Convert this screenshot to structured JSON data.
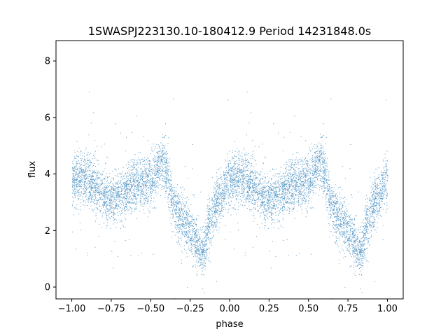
{
  "chart_data": {
    "type": "scatter",
    "title": "1SWASPJ223130.10-180412.9 Period 14231848.0s",
    "xlabel": "phase",
    "ylabel": "flux",
    "xlim": [
      -1.1,
      1.1
    ],
    "ylim": [
      -0.42,
      8.72
    ],
    "xticks": [
      -1.0,
      -0.75,
      -0.5,
      -0.25,
      0.0,
      0.25,
      0.5,
      0.75,
      1.0
    ],
    "xtick_labels": [
      "−1.00",
      "−0.75",
      "−0.50",
      "−0.25",
      "0.00",
      "0.25",
      "0.50",
      "0.75",
      "1.00"
    ],
    "yticks": [
      0,
      2,
      4,
      6,
      8
    ],
    "ytick_labels": [
      "0",
      "2",
      "4",
      "6",
      "8"
    ],
    "grid": false,
    "color": "#1f77b4",
    "marker_size": 1,
    "trend": {
      "phase": [
        0.0,
        0.05,
        0.1,
        0.15,
        0.2,
        0.25,
        0.3,
        0.35,
        0.4,
        0.45,
        0.5,
        0.55,
        0.58,
        0.62,
        0.66,
        0.7,
        0.75,
        0.8,
        0.83,
        0.86,
        0.9,
        0.95,
        1.0
      ],
      "flux": [
        3.7,
        3.9,
        3.8,
        3.5,
        3.3,
        3.0,
        3.2,
        3.4,
        3.6,
        3.7,
        3.8,
        4.2,
        4.5,
        3.5,
        2.7,
        2.4,
        2.0,
        1.4,
        1.2,
        2.0,
        2.8,
        3.3,
        3.9
      ],
      "scatter_sigma": 0.45,
      "points_per_cycle": 6000,
      "cycles_shown": 2
    }
  }
}
